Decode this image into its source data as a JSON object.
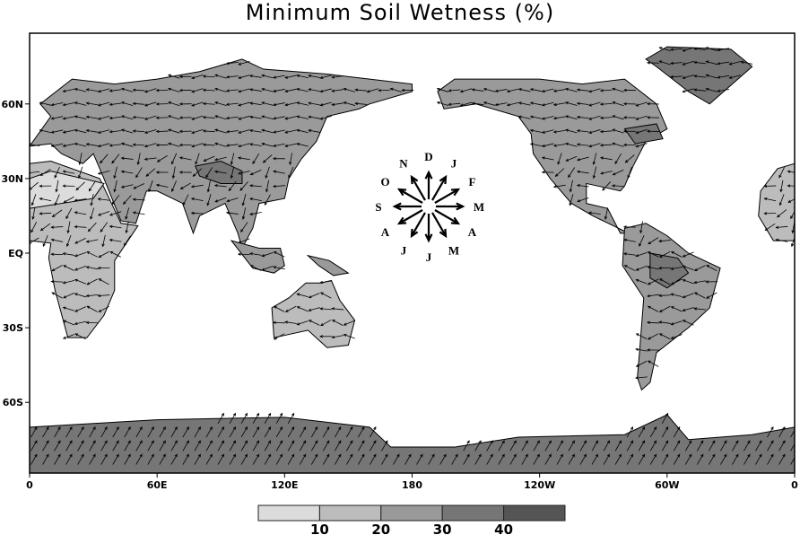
{
  "chart_data": {
    "type": "map",
    "title": "Minimum Soil Wetness (%)",
    "projection": "cylindrical-equidistant",
    "lon_range": [
      0,
      360
    ],
    "lat_range": [
      -90,
      90
    ],
    "x_ticks": [
      "0",
      "60E",
      "120E",
      "180",
      "120W",
      "60W",
      "0"
    ],
    "y_ticks": [
      "60N",
      "30N",
      "EQ",
      "30S",
      "60S"
    ],
    "colorbar": {
      "levels": [
        10,
        20,
        30,
        40
      ],
      "labels": [
        "10",
        "20",
        "30",
        "40"
      ],
      "colors": [
        "#dcdcdc",
        "#bcbcbc",
        "#9a9a9a",
        "#767676",
        "#555555"
      ]
    },
    "vector_field": "arrows indicate month of minimum soil wetness",
    "month_key": {
      "labels": [
        "D",
        "J",
        "F",
        "M",
        "A",
        "M",
        "J",
        "J",
        "A",
        "S",
        "O",
        "N"
      ],
      "direction": "clockwise from top"
    }
  }
}
